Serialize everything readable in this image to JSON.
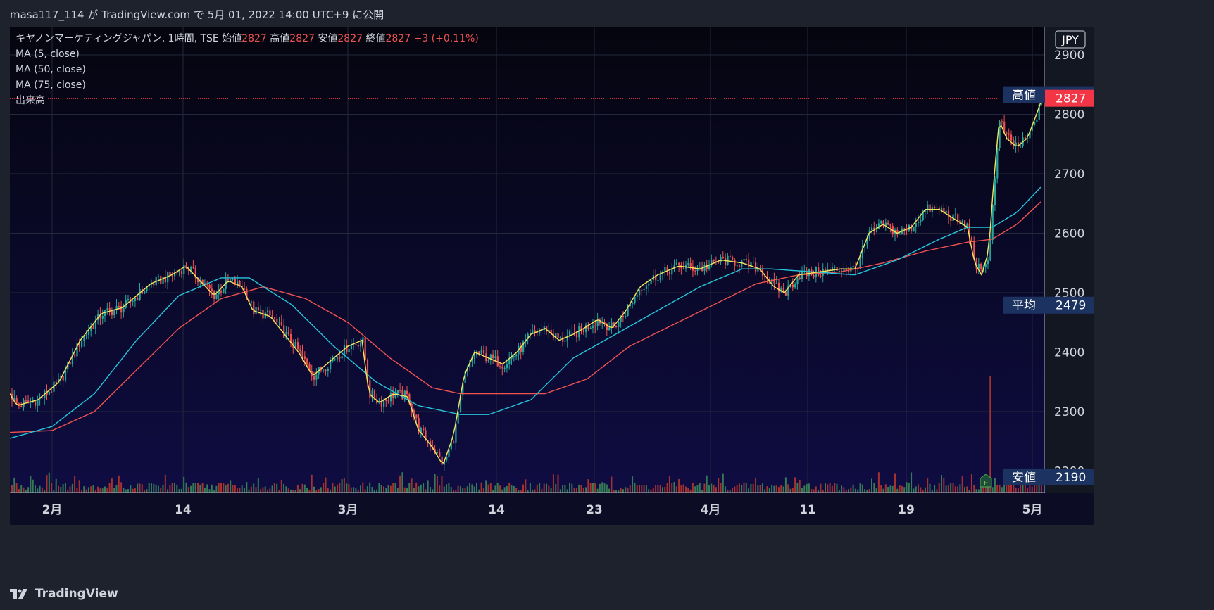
{
  "header": {
    "published": "masa117_114 が TradingView.com で 5月 01, 2022 14:00 UTC+9 に公開"
  },
  "footer": {
    "brand": "TradingView"
  },
  "colors": {
    "background": "#0c0c24",
    "up": "#26a69a",
    "down": "#ef5350",
    "ma5": "#f5e65f",
    "ma50": "#26c6da",
    "ma75": "#ef5350",
    "label_bg": "#1c3361",
    "last_price_bg": "#f23645"
  },
  "chart_data": {
    "type": "candlestick",
    "title": "キヤノンマーケティングジャパン, 1時間, TSE",
    "currency": "JPY",
    "ohlc_summary": {
      "open_label": "始値",
      "open": "2827",
      "high_label": "高値",
      "high": "2827",
      "low_label": "安値",
      "low": "2827",
      "close_label": "終値",
      "close": "2827",
      "change": "+3 (+0.11%)"
    },
    "indicators": [
      "MA (5, close)",
      "MA (50, close)",
      "MA (75, close)",
      "出来高"
    ],
    "y_axis": {
      "min": 2180,
      "max": 2920,
      "ticks": [
        2900,
        2800,
        2700,
        2600,
        2500,
        2400,
        2300,
        2200
      ]
    },
    "x_axis": {
      "ticks": [
        "2月",
        "14",
        "3月",
        "14",
        "23",
        "4月",
        "11",
        "19",
        "5月"
      ],
      "tick_positions": [
        60,
        246,
        480,
        691,
        830,
        995,
        1133,
        1273,
        1452
      ]
    },
    "price_labels": [
      {
        "name": "高値",
        "value": 2833
      },
      {
        "name": "last",
        "value": 2827
      },
      {
        "name": "平均",
        "value": 2479
      },
      {
        "name": "安値",
        "value": 2190
      }
    ],
    "key_points": [
      [
        0,
        2330
      ],
      [
        10,
        2310
      ],
      [
        40,
        2320
      ],
      [
        70,
        2350
      ],
      [
        100,
        2420
      ],
      [
        130,
        2465
      ],
      [
        160,
        2475
      ],
      [
        200,
        2515
      ],
      [
        230,
        2530
      ],
      [
        250,
        2545
      ],
      [
        270,
        2520
      ],
      [
        290,
        2495
      ],
      [
        310,
        2520
      ],
      [
        330,
        2510
      ],
      [
        345,
        2470
      ],
      [
        370,
        2460
      ],
      [
        390,
        2430
      ],
      [
        410,
        2400
      ],
      [
        430,
        2360
      ],
      [
        460,
        2390
      ],
      [
        480,
        2410
      ],
      [
        500,
        2420
      ],
      [
        510,
        2330
      ],
      [
        525,
        2315
      ],
      [
        545,
        2330
      ],
      [
        565,
        2325
      ],
      [
        580,
        2270
      ],
      [
        600,
        2240
      ],
      [
        615,
        2210
      ],
      [
        630,
        2260
      ],
      [
        645,
        2360
      ],
      [
        660,
        2400
      ],
      [
        680,
        2390
      ],
      [
        700,
        2380
      ],
      [
        720,
        2400
      ],
      [
        740,
        2430
      ],
      [
        760,
        2440
      ],
      [
        780,
        2420
      ],
      [
        800,
        2430
      ],
      [
        815,
        2440
      ],
      [
        835,
        2455
      ],
      [
        855,
        2440
      ],
      [
        875,
        2470
      ],
      [
        895,
        2510
      ],
      [
        920,
        2530
      ],
      [
        950,
        2545
      ],
      [
        980,
        2540
      ],
      [
        1010,
        2555
      ],
      [
        1040,
        2550
      ],
      [
        1065,
        2540
      ],
      [
        1085,
        2510
      ],
      [
        1100,
        2500
      ],
      [
        1120,
        2530
      ],
      [
        1150,
        2535
      ],
      [
        1180,
        2540
      ],
      [
        1200,
        2540
      ],
      [
        1220,
        2600
      ],
      [
        1240,
        2615
      ],
      [
        1260,
        2600
      ],
      [
        1280,
        2610
      ],
      [
        1300,
        2640
      ],
      [
        1320,
        2640
      ],
      [
        1340,
        2625
      ],
      [
        1360,
        2610
      ],
      [
        1370,
        2550
      ],
      [
        1380,
        2530
      ],
      [
        1390,
        2570
      ],
      [
        1398,
        2700
      ],
      [
        1405,
        2790
      ],
      [
        1415,
        2760
      ],
      [
        1430,
        2745
      ],
      [
        1445,
        2760
      ],
      [
        1458,
        2800
      ],
      [
        1466,
        2827
      ]
    ],
    "ma50_points": [
      [
        0,
        2255
      ],
      [
        60,
        2275
      ],
      [
        120,
        2330
      ],
      [
        180,
        2420
      ],
      [
        240,
        2495
      ],
      [
        300,
        2525
      ],
      [
        340,
        2525
      ],
      [
        400,
        2480
      ],
      [
        460,
        2410
      ],
      [
        520,
        2350
      ],
      [
        580,
        2310
      ],
      [
        640,
        2295
      ],
      [
        680,
        2295
      ],
      [
        740,
        2320
      ],
      [
        800,
        2390
      ],
      [
        860,
        2430
      ],
      [
        920,
        2470
      ],
      [
        980,
        2510
      ],
      [
        1040,
        2540
      ],
      [
        1080,
        2540
      ],
      [
        1140,
        2535
      ],
      [
        1200,
        2530
      ],
      [
        1260,
        2555
      ],
      [
        1320,
        2590
      ],
      [
        1360,
        2610
      ],
      [
        1395,
        2610
      ],
      [
        1430,
        2635
      ],
      [
        1466,
        2680
      ]
    ],
    "ma75_points": [
      [
        0,
        2265
      ],
      [
        60,
        2268
      ],
      [
        120,
        2300
      ],
      [
        180,
        2370
      ],
      [
        240,
        2440
      ],
      [
        300,
        2490
      ],
      [
        360,
        2510
      ],
      [
        420,
        2490
      ],
      [
        480,
        2450
      ],
      [
        540,
        2390
      ],
      [
        600,
        2340
      ],
      [
        640,
        2330
      ],
      [
        700,
        2330
      ],
      [
        760,
        2330
      ],
      [
        820,
        2355
      ],
      [
        880,
        2410
      ],
      [
        940,
        2445
      ],
      [
        1000,
        2480
      ],
      [
        1060,
        2515
      ],
      [
        1120,
        2530
      ],
      [
        1180,
        2535
      ],
      [
        1240,
        2550
      ],
      [
        1300,
        2570
      ],
      [
        1360,
        2585
      ],
      [
        1395,
        2590
      ],
      [
        1430,
        2615
      ],
      [
        1466,
        2655
      ]
    ],
    "volume_spikes": [
      {
        "x": 1390,
        "value": 100
      },
      {
        "x": 1420,
        "value": 20
      },
      {
        "x": 1434,
        "value": 6
      }
    ]
  }
}
